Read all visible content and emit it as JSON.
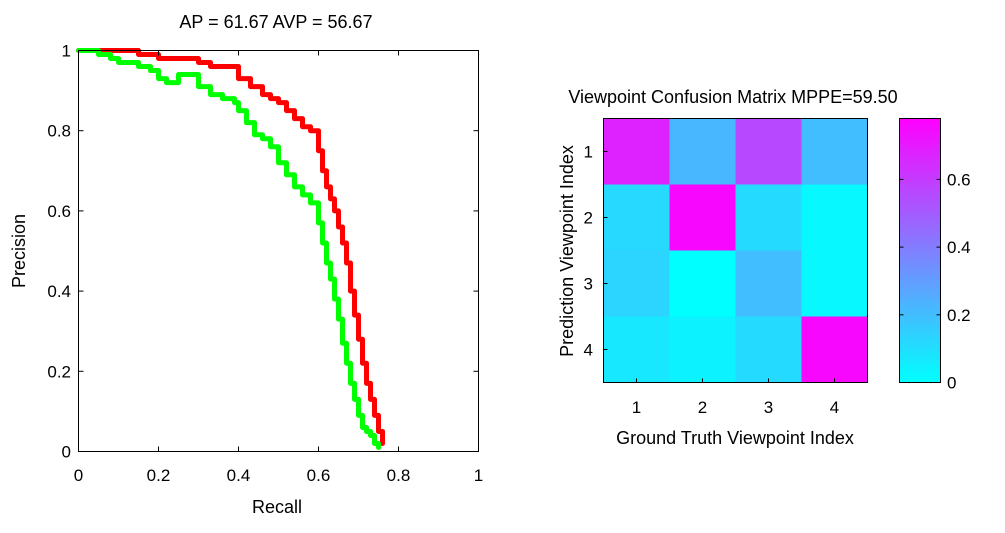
{
  "chart_data": [
    {
      "type": "line",
      "title": "AP = 61.67 AVP = 56.67",
      "xlabel": "Recall",
      "ylabel": "Precision",
      "xlim": [
        0,
        1
      ],
      "ylim": [
        0,
        1
      ],
      "xticks": [
        "0",
        "0.2",
        "0.4",
        "0.6",
        "0.8",
        "1"
      ],
      "yticks": [
        "0",
        "0.2",
        "0.4",
        "0.6",
        "0.8",
        "1"
      ],
      "grid": false,
      "series": [
        {
          "color": "#ff0000",
          "x": [
            0.0,
            0.05,
            0.1,
            0.15,
            0.2,
            0.25,
            0.3,
            0.33,
            0.36,
            0.4,
            0.43,
            0.46,
            0.48,
            0.5,
            0.52,
            0.54,
            0.56,
            0.58,
            0.6,
            0.61,
            0.62,
            0.63,
            0.64,
            0.65,
            0.66,
            0.67,
            0.68,
            0.69,
            0.7,
            0.71,
            0.72,
            0.73,
            0.74,
            0.75,
            0.76
          ],
          "y": [
            1.0,
            1.0,
            1.0,
            0.99,
            0.98,
            0.98,
            0.97,
            0.96,
            0.96,
            0.93,
            0.91,
            0.89,
            0.88,
            0.87,
            0.85,
            0.83,
            0.81,
            0.8,
            0.75,
            0.7,
            0.66,
            0.63,
            0.6,
            0.56,
            0.52,
            0.47,
            0.4,
            0.34,
            0.28,
            0.22,
            0.17,
            0.13,
            0.09,
            0.05,
            0.02
          ]
        },
        {
          "color": "#00ff00",
          "x": [
            0.0,
            0.05,
            0.08,
            0.1,
            0.13,
            0.15,
            0.18,
            0.2,
            0.22,
            0.25,
            0.3,
            0.33,
            0.36,
            0.39,
            0.4,
            0.42,
            0.44,
            0.46,
            0.48,
            0.5,
            0.52,
            0.54,
            0.56,
            0.58,
            0.6,
            0.61,
            0.62,
            0.63,
            0.64,
            0.65,
            0.66,
            0.67,
            0.68,
            0.69,
            0.7,
            0.71,
            0.72,
            0.73,
            0.74,
            0.75
          ],
          "y": [
            1.0,
            0.99,
            0.98,
            0.97,
            0.97,
            0.96,
            0.95,
            0.93,
            0.92,
            0.94,
            0.91,
            0.89,
            0.88,
            0.87,
            0.85,
            0.82,
            0.79,
            0.78,
            0.76,
            0.72,
            0.69,
            0.66,
            0.64,
            0.62,
            0.57,
            0.52,
            0.47,
            0.43,
            0.38,
            0.33,
            0.27,
            0.22,
            0.17,
            0.13,
            0.09,
            0.06,
            0.05,
            0.04,
            0.02,
            0.01
          ]
        }
      ]
    },
    {
      "type": "heatmap",
      "title": "Viewpoint Confusion Matrix MPPE=59.50",
      "xlabel": "Ground Truth Viewpoint Index",
      "ylabel": "Prediction Viewpoint Index",
      "x_categories": [
        "1",
        "2",
        "3",
        "4"
      ],
      "y_categories": [
        "1",
        "2",
        "3",
        "4"
      ],
      "values": [
        [
          0.68,
          0.22,
          0.56,
          0.2
        ],
        [
          0.12,
          0.76,
          0.11,
          0.02
        ],
        [
          0.13,
          0.0,
          0.2,
          0.02
        ],
        [
          0.07,
          0.04,
          0.11,
          0.76
        ]
      ],
      "colormap": "cool",
      "colormap_colors": [
        "#00ffff",
        "#ff00ff"
      ],
      "colorbar_range": [
        0,
        0.78
      ],
      "colorbar_ticks": [
        0,
        0.2,
        0.4,
        0.6
      ],
      "colorbar_tick_labels": [
        "0",
        "0.2",
        "0.4",
        "0.6"
      ]
    }
  ]
}
